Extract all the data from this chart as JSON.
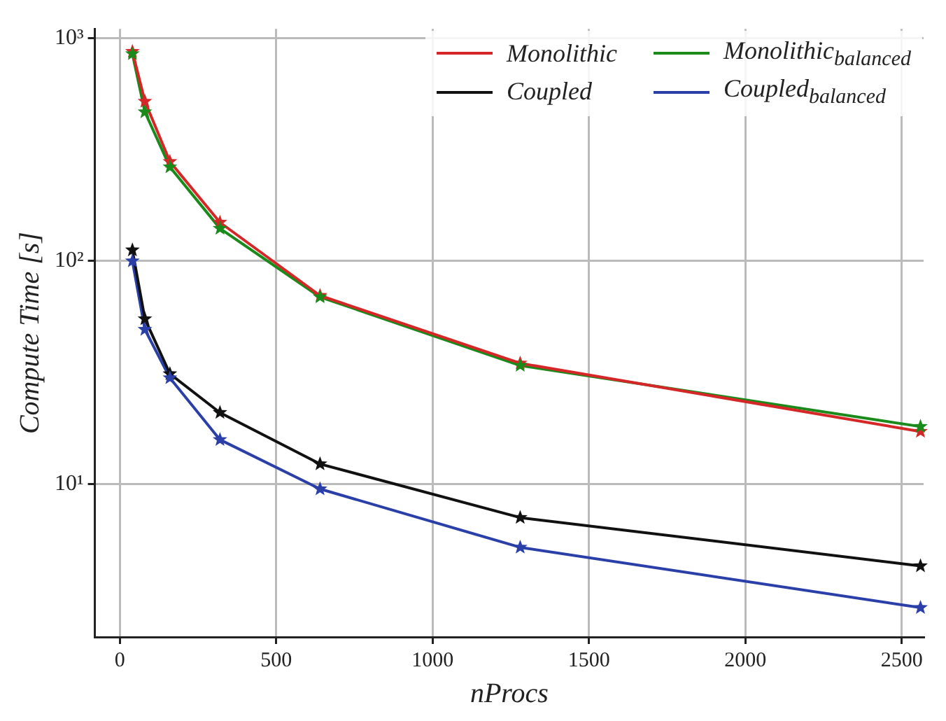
{
  "chart_data": {
    "type": "line",
    "xlabel": "nProcs",
    "ylabel": "Compute Time [s]",
    "x": [
      40,
      80,
      160,
      320,
      640,
      1280,
      2560
    ],
    "series": [
      {
        "name": "Monolithic",
        "color": "#d62728",
        "values": [
          870,
          520,
          279,
          149,
          70,
          34.8,
          17.2
        ]
      },
      {
        "name": "Monolithic$_{balanced}$",
        "color": "#1a8a1a",
        "values": [
          850,
          466,
          264,
          140,
          69,
          34,
          18.1
        ]
      },
      {
        "name": "Coupled",
        "color": "#111111",
        "values": [
          112,
          55,
          31.2,
          20.9,
          12.3,
          7.07,
          4.29
        ]
      },
      {
        "name": "Coupled$_{balanced}$",
        "color": "#2b3fa8",
        "values": [
          100,
          49.3,
          29.9,
          15.8,
          9.5,
          5.2,
          2.79
        ]
      }
    ],
    "xlim": [
      -80,
      2570
    ],
    "xticks": [
      0,
      500,
      1000,
      1500,
      2000,
      2500
    ],
    "ylim": [
      2.06,
      1100
    ],
    "yticks": [
      {
        "value": 10,
        "label": "10¹"
      },
      {
        "value": 100,
        "label": "10²"
      },
      {
        "value": 1000,
        "label": "10³"
      }
    ],
    "log": "y",
    "grid": true,
    "legend": "top right",
    "marker": "star",
    "line_style": "solid"
  }
}
